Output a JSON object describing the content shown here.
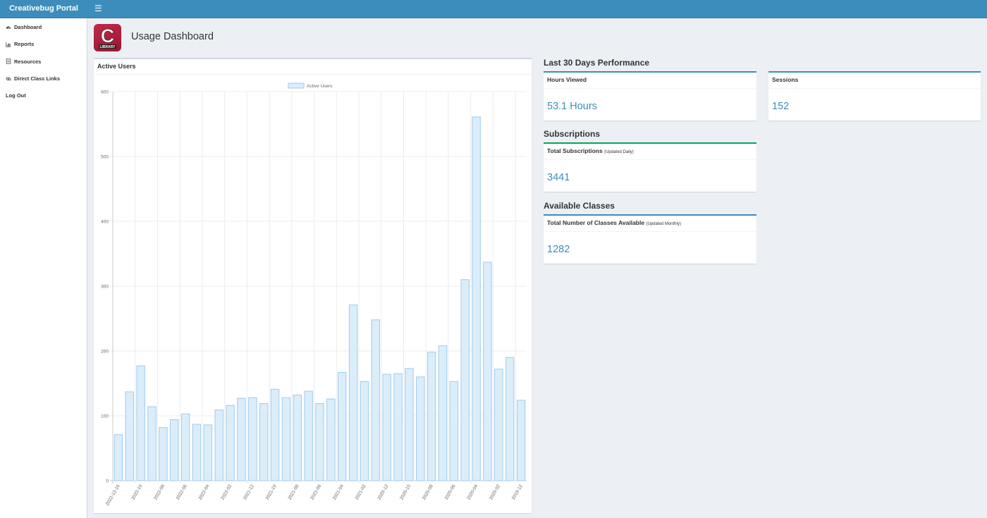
{
  "header": {
    "brand": "Creativebug Portal",
    "menu_icon": "hamburger-icon"
  },
  "sidebar": {
    "items": [
      {
        "label": "Dashboard",
        "icon": "dashboard-icon"
      },
      {
        "label": "Reports",
        "icon": "bar-chart-icon"
      },
      {
        "label": "Resources",
        "icon": "file-icon"
      },
      {
        "label": "Direct Class Links",
        "icon": "link-icon"
      },
      {
        "label": "Log Out"
      }
    ]
  },
  "page": {
    "title": "Usage Dashboard",
    "logo": {
      "letter": "C",
      "caption": "LIBRARY",
      "color": "#b51f3d"
    }
  },
  "active_users": {
    "title": "Active Users"
  },
  "performance": {
    "title": "Last 30 Days Performance",
    "hours_viewed": {
      "label": "Hours Viewed",
      "value": "53.1 Hours"
    },
    "sessions": {
      "label": "Sessions",
      "value": "152"
    }
  },
  "subscriptions": {
    "title": "Subscriptions",
    "label": "Total Subscriptions",
    "note": "(Updated Daily)",
    "value": "3441"
  },
  "classes": {
    "title": "Available Classes",
    "label": "Total Number of Classes Available",
    "note": "(Updated Monthly)",
    "value": "1282"
  },
  "colors": {
    "accent": "#3c8dbc",
    "green": "#00a65a",
    "bar_fill": "#dcedfa",
    "bar_stroke": "#9ccbf0"
  },
  "chart_data": {
    "type": "bar",
    "title": "Active Users",
    "legend": [
      "Active Users"
    ],
    "legend_position": "top",
    "grid": true,
    "ylim": [
      0,
      600
    ],
    "yticks": [
      0,
      100,
      200,
      300,
      400,
      500,
      600
    ],
    "categories": [
      "2022-12-16",
      "2022-11",
      "2022-10",
      "2022-09",
      "2022-08",
      "2022-07",
      "2022-06",
      "2022-05",
      "2022-04",
      "2022-03",
      "2022-02",
      "2022-01",
      "2021-12",
      "2021-11",
      "2021-10",
      "2021-09",
      "2021-08",
      "2021-07",
      "2021-06",
      "2021-05",
      "2021-04",
      "2021-03",
      "2021-02",
      "2021-01",
      "2020-12",
      "2020-11",
      "2020-10",
      "2020-09",
      "2020-08",
      "2020-07",
      "2020-06",
      "2020-05",
      "2020-04",
      "2020-03",
      "2020-02",
      "2020-01",
      "2019-12"
    ],
    "tick_labels": [
      "2022-12-16",
      "",
      "2022-10",
      "",
      "2022-08",
      "",
      "2022-06",
      "",
      "2022-04",
      "",
      "2022-02",
      "",
      "2021-12",
      "",
      "2021-10",
      "",
      "2021-08",
      "",
      "2021-06",
      "",
      "2021-04",
      "",
      "2021-02",
      "",
      "2020-12",
      "",
      "2020-10",
      "",
      "2020-08",
      "",
      "2020-06",
      "",
      "2020-04",
      "",
      "2020-02",
      "",
      "2019-12"
    ],
    "series": [
      {
        "name": "Active Users",
        "values": [
          71,
          137,
          177,
          114,
          82,
          94,
          103,
          87,
          86,
          109,
          116,
          127,
          128,
          119,
          141,
          128,
          132,
          138,
          119,
          126,
          167,
          271,
          153,
          248,
          164,
          165,
          173,
          160,
          198,
          208,
          153,
          310,
          561,
          337,
          172,
          190,
          124
        ]
      }
    ]
  }
}
